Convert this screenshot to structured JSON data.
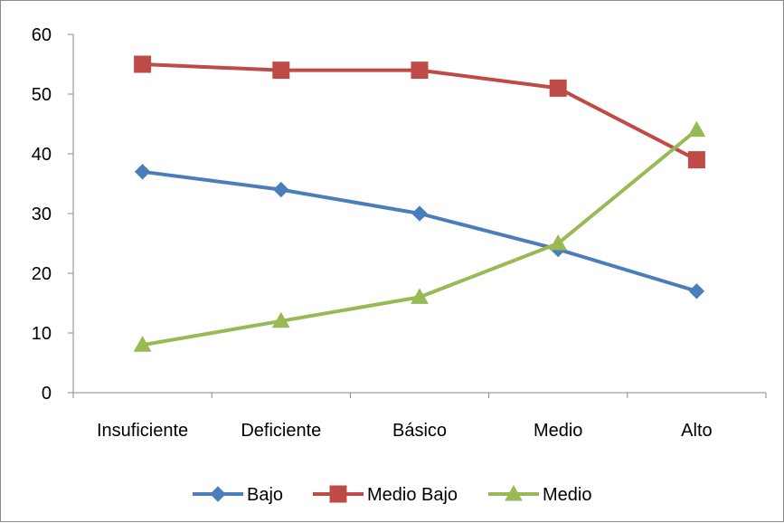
{
  "chart_data": {
    "type": "line",
    "categories": [
      "Insuficiente",
      "Deficiente",
      "Básico",
      "Medio",
      "Alto"
    ],
    "series": [
      {
        "name": "Bajo",
        "values": [
          37,
          34,
          30,
          24,
          17
        ],
        "color": "#4a7ebb",
        "marker": "diamond"
      },
      {
        "name": "Medio Bajo",
        "values": [
          55,
          54,
          54,
          51,
          39
        ],
        "color": "#be4b48",
        "marker": "square"
      },
      {
        "name": "Medio",
        "values": [
          8,
          12,
          16,
          25,
          44
        ],
        "color": "#98b954",
        "marker": "triangle"
      }
    ],
    "title": "",
    "xlabel": "",
    "ylabel": "",
    "ylim": [
      0,
      60
    ],
    "yticks": [
      "0",
      "10",
      "20",
      "30",
      "40",
      "50",
      "60"
    ],
    "grid": false,
    "legend": "bottom"
  }
}
